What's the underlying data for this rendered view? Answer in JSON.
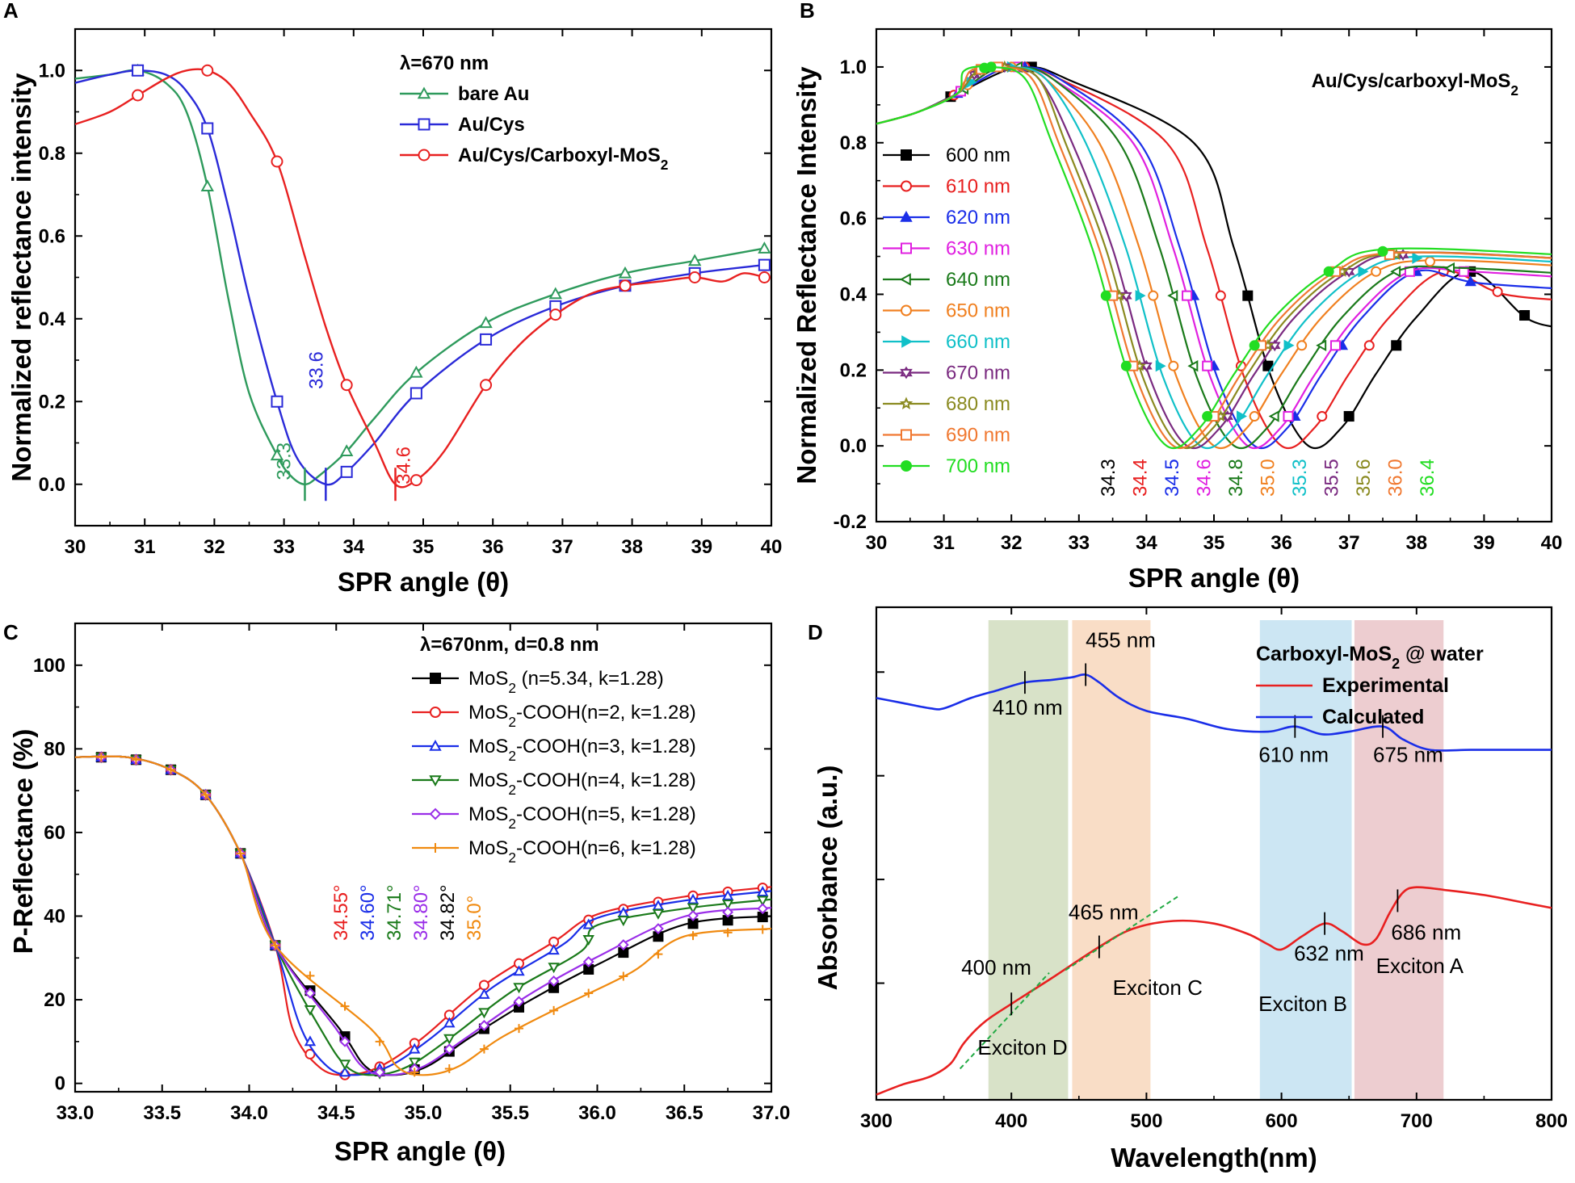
{
  "figure": {
    "panels": [
      "A",
      "B",
      "C",
      "D"
    ]
  },
  "chart_data": [
    {
      "panel": "A",
      "type": "line",
      "xlabel": "SPR angle (θ)",
      "ylabel": "Normalized reflectance intensity",
      "xlim": [
        30,
        40
      ],
      "ylim": [
        -0.1,
        1.1
      ],
      "xticks": [
        30,
        31,
        32,
        33,
        34,
        35,
        36,
        37,
        38,
        39,
        40
      ],
      "yticks": [
        0.0,
        0.2,
        0.4,
        0.6,
        0.8,
        1.0
      ],
      "legend_title": "λ=670 nm",
      "series": [
        {
          "name": "bare Au",
          "color": "#2e9a5c",
          "marker": "triangle-up",
          "x": [
            30.0,
            30.5,
            30.9,
            31.3,
            31.6,
            31.9,
            32.2,
            32.5,
            32.9,
            33.1,
            33.3,
            33.5,
            33.9,
            34.3,
            34.9,
            35.9,
            36.9,
            37.9,
            38.9,
            39.9
          ],
          "y": [
            0.98,
            0.99,
            1.0,
            0.97,
            0.9,
            0.72,
            0.45,
            0.22,
            0.07,
            0.02,
            0.0,
            0.02,
            0.08,
            0.16,
            0.27,
            0.39,
            0.46,
            0.51,
            0.54,
            0.57
          ],
          "markers_x": [
            30.9,
            31.9,
            32.9,
            33.9,
            34.9,
            35.9,
            36.9,
            37.9,
            38.9,
            39.9
          ]
        },
        {
          "name": "Au/Cys",
          "color": "#2a2ad8",
          "marker": "square",
          "x": [
            30.0,
            30.5,
            30.9,
            31.3,
            31.6,
            31.9,
            32.2,
            32.5,
            32.9,
            33.2,
            33.6,
            33.9,
            34.3,
            34.9,
            35.9,
            36.9,
            37.9,
            38.9,
            39.9
          ],
          "y": [
            0.97,
            0.99,
            1.0,
            0.99,
            0.95,
            0.86,
            0.67,
            0.45,
            0.2,
            0.06,
            0.0,
            0.03,
            0.1,
            0.22,
            0.35,
            0.43,
            0.48,
            0.51,
            0.53
          ],
          "markers_x": [
            30.9,
            31.9,
            32.9,
            33.9,
            34.9,
            35.9,
            36.9,
            37.9,
            38.9,
            39.9
          ]
        },
        {
          "name": "Au/Cys/Carboxyl-MoS₂",
          "color": "#e82020",
          "marker": "circle",
          "x": [
            30.0,
            30.5,
            30.9,
            31.3,
            31.6,
            31.9,
            32.2,
            32.5,
            32.9,
            33.3,
            33.6,
            33.9,
            34.3,
            34.6,
            34.9,
            35.3,
            35.9,
            36.4,
            36.9,
            37.4,
            37.9,
            38.4,
            38.9,
            39.3,
            39.6,
            39.9
          ],
          "y": [
            0.87,
            0.9,
            0.94,
            0.98,
            1.0,
            1.0,
            0.97,
            0.9,
            0.78,
            0.55,
            0.38,
            0.24,
            0.1,
            0.0,
            0.01,
            0.08,
            0.24,
            0.34,
            0.41,
            0.46,
            0.48,
            0.49,
            0.5,
            0.49,
            0.51,
            0.5
          ],
          "markers_x": [
            30.9,
            31.9,
            32.9,
            33.9,
            34.9,
            35.9,
            36.9,
            37.9,
            38.9,
            39.9
          ]
        }
      ],
      "annotations": [
        {
          "text": "33.3",
          "x": 33.3,
          "color": "#2e9a5c"
        },
        {
          "text": "33.6",
          "x": 33.6,
          "color": "#2a2ad8"
        },
        {
          "text": "34.6",
          "x": 34.6,
          "color": "#e82020"
        }
      ]
    },
    {
      "panel": "B",
      "type": "line",
      "title": "Au/Cys/carboxyl-MoS₂",
      "xlabel": "SPR angle (θ)",
      "ylabel": "Normalized Reflectance Intensity",
      "xlim": [
        30,
        40
      ],
      "ylim": [
        -0.2,
        1.1
      ],
      "xticks": [
        30,
        31,
        32,
        33,
        34,
        35,
        36,
        37,
        38,
        39,
        40
      ],
      "yticks": [
        -0.2,
        0.0,
        0.2,
        0.4,
        0.6,
        0.8,
        1.0
      ],
      "series": [
        {
          "name": "600 nm",
          "color": "#000000",
          "marker": "square",
          "min_angle": 36.4,
          "plateau": 0.33,
          "peak_angle": 32.3
        },
        {
          "name": "610 nm",
          "color": "#e82020",
          "marker": "circle",
          "min_angle": 36.0,
          "plateau": 0.4,
          "peak_angle": 32.2
        },
        {
          "name": "620 nm",
          "color": "#1a2ee8",
          "marker": "triangle-up",
          "min_angle": 35.6,
          "plateau": 0.43,
          "peak_angle": 32.2
        },
        {
          "name": "630 nm",
          "color": "#e020e0",
          "marker": "square",
          "min_angle": 35.5,
          "plateau": 0.46,
          "peak_angle": 32.1
        },
        {
          "name": "640 nm",
          "color": "#1a7a1a",
          "marker": "triangle-left",
          "min_angle": 35.3,
          "plateau": 0.47,
          "peak_angle": 32.1
        },
        {
          "name": "650 nm",
          "color": "#f08020",
          "marker": "circle",
          "min_angle": 35.0,
          "plateau": 0.49,
          "peak_angle": 32.0
        },
        {
          "name": "660 nm",
          "color": "#10c0c8",
          "marker": "triangle-right",
          "min_angle": 34.8,
          "plateau": 0.5,
          "peak_angle": 32.0
        },
        {
          "name": "670 nm",
          "color": "#7a2a80",
          "marker": "hexagram",
          "min_angle": 34.6,
          "plateau": 0.51,
          "peak_angle": 31.9
        },
        {
          "name": "680 nm",
          "color": "#8a8a20",
          "marker": "star",
          "min_angle": 34.5,
          "plateau": 0.51,
          "peak_angle": 31.9
        },
        {
          "name": "690 nm",
          "color": "#f07830",
          "marker": "square",
          "min_angle": 34.4,
          "plateau": 0.51,
          "peak_angle": 31.8
        },
        {
          "name": "700 nm",
          "color": "#22dd22",
          "marker": "circle",
          "min_angle": 34.3,
          "plateau": 0.52,
          "peak_angle": 31.7
        }
      ],
      "min_labels": [
        "34.3",
        "34.4",
        "34.5",
        "34.6",
        "34.8",
        "35.0",
        "35.3",
        "35.5",
        "35.6",
        "36.0",
        "36.4"
      ]
    },
    {
      "panel": "C",
      "type": "line",
      "xlabel": "SPR angle (θ)",
      "ylabel": "P-Reflectance (%)",
      "xlim": [
        33.0,
        37.0
      ],
      "ylim": [
        -2,
        110
      ],
      "xticks": [
        33.0,
        33.5,
        34.0,
        34.5,
        35.0,
        35.5,
        36.0,
        36.5,
        37.0
      ],
      "yticks": [
        0,
        20,
        40,
        60,
        80,
        100
      ],
      "legend_title": "λ=670nm, d=0.8 nm",
      "series": [
        {
          "name": "MoS₂ (n=5.34, k=1.28)",
          "color": "#000000",
          "marker": "square",
          "min_angle": 34.82,
          "end_value": 40
        },
        {
          "name": "MoS₂-COOH(n=2, k=1.28)",
          "color": "#e82020",
          "marker": "circle",
          "min_angle": 34.55,
          "end_value": 47
        },
        {
          "name": "MoS₂-COOH(n=3, k=1.28)",
          "color": "#1a2ee8",
          "marker": "triangle-up",
          "min_angle": 34.6,
          "end_value": 46
        },
        {
          "name": "MoS₂-COOH(n=4, k=1.28)",
          "color": "#1a7a1a",
          "marker": "triangle-down",
          "min_angle": 34.71,
          "end_value": 44
        },
        {
          "name": "MoS₂-COOH(n=5, k=1.28)",
          "color": "#9a2ee8",
          "marker": "diamond",
          "min_angle": 34.8,
          "end_value": 42
        },
        {
          "name": "MoS₂-COOH(n=6, k=1.28)",
          "color": "#f08a10",
          "marker": "plus",
          "min_angle": 35.0,
          "end_value": 37
        }
      ],
      "min_labels": [
        {
          "text": "34.55°",
          "color": "#e82020"
        },
        {
          "text": "34.60°",
          "color": "#1a2ee8"
        },
        {
          "text": "34.71°",
          "color": "#1a7a1a"
        },
        {
          "text": "34.80°",
          "color": "#9a2ee8"
        },
        {
          "text": "34.82°",
          "color": "#000000"
        },
        {
          "text": "35.0°",
          "color": "#f08a10"
        }
      ]
    },
    {
      "panel": "D",
      "type": "line",
      "xlabel": "Wavelength(nm)",
      "ylabel": "Absorbance (a.u.)",
      "xlim": [
        300,
        800
      ],
      "xticks": [
        300,
        400,
        500,
        600,
        700,
        800
      ],
      "legend_title": "Carboxyl-MoS₂ @ water",
      "series": [
        {
          "name": "Experimental",
          "color": "#e82020",
          "x": [
            300,
            320,
            340,
            355,
            365,
            380,
            400,
            430,
            465,
            490,
            520,
            550,
            575,
            590,
            600,
            615,
            632,
            645,
            660,
            670,
            680,
            690,
            700,
            720,
            750,
            780,
            800
          ],
          "y": [
            0.02,
            0.06,
            0.09,
            0.14,
            0.22,
            0.3,
            0.37,
            0.47,
            0.59,
            0.66,
            0.69,
            0.68,
            0.64,
            0.6,
            0.58,
            0.63,
            0.68,
            0.65,
            0.6,
            0.62,
            0.72,
            0.8,
            0.82,
            0.81,
            0.79,
            0.76,
            0.74
          ]
        },
        {
          "name": "Calculated",
          "color": "#1a2ee8",
          "x": [
            300,
            320,
            340,
            350,
            370,
            390,
            410,
            430,
            445,
            455,
            465,
            480,
            500,
            530,
            560,
            590,
            610,
            630,
            650,
            675,
            690,
            710,
            740,
            770,
            800
          ],
          "y": [
            1.55,
            1.53,
            1.51,
            1.51,
            1.55,
            1.58,
            1.61,
            1.62,
            1.63,
            1.64,
            1.61,
            1.55,
            1.5,
            1.47,
            1.43,
            1.42,
            1.44,
            1.41,
            1.42,
            1.44,
            1.39,
            1.35,
            1.35,
            1.35,
            1.35
          ]
        }
      ],
      "ylim": [
        0,
        1.9
      ],
      "peak_labels": [
        {
          "text": "455 nm",
          "series": "Calculated",
          "x": 455
        },
        {
          "text": "410 nm",
          "series": "Calculated",
          "x": 410
        },
        {
          "text": "610 nm",
          "series": "Calculated",
          "x": 610
        },
        {
          "text": "675 nm",
          "series": "Calculated",
          "x": 675
        },
        {
          "text": "465 nm",
          "series": "Experimental",
          "x": 465
        },
        {
          "text": "400 nm",
          "series": "Experimental",
          "x": 400
        },
        {
          "text": "632 nm",
          "series": "Experimental",
          "x": 632
        },
        {
          "text": "686 nm",
          "series": "Experimental",
          "x": 686
        }
      ],
      "bands": [
        {
          "label": "Exciton D",
          "from": 383,
          "to": 442,
          "color": "#c8d6b0"
        },
        {
          "label": "Exciton C",
          "from": 445,
          "to": 503,
          "color": "#f6cfae"
        },
        {
          "label": "Exciton B",
          "from": 584,
          "to": 652,
          "color": "#b6dcee"
        },
        {
          "label": "Exciton A",
          "from": 654,
          "to": 720,
          "color": "#e6b8bc"
        }
      ]
    }
  ]
}
